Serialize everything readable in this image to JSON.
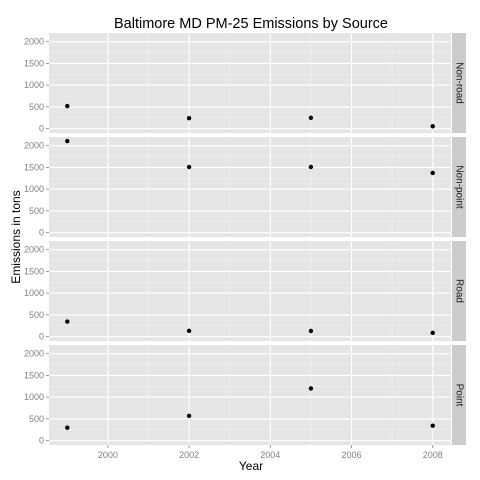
{
  "chart_data": {
    "type": "scatter",
    "title": "Baltimore MD PM-25 Emissions by Source",
    "xlabel": "Year",
    "ylabel": "Emissions in tons",
    "x_ticks": [
      "2000",
      "2002",
      "2004",
      "2006",
      "2008"
    ],
    "y_ticks": [
      "0",
      "500",
      "1000",
      "1500",
      "2000"
    ],
    "xlim": [
      1998.55,
      2008.45
    ],
    "ylim": [
      -100,
      2200
    ],
    "grid": true,
    "facets": [
      {
        "label": "Non-road",
        "points": [
          {
            "x": 1999,
            "y": 520
          },
          {
            "x": 2002,
            "y": 240
          },
          {
            "x": 2005,
            "y": 250
          },
          {
            "x": 2008,
            "y": 55
          }
        ]
      },
      {
        "label": "Non-point",
        "points": [
          {
            "x": 1999,
            "y": 2107
          },
          {
            "x": 2002,
            "y": 1510
          },
          {
            "x": 2005,
            "y": 1510
          },
          {
            "x": 2008,
            "y": 1373
          }
        ]
      },
      {
        "label": "Road",
        "points": [
          {
            "x": 1999,
            "y": 347
          },
          {
            "x": 2002,
            "y": 134
          },
          {
            "x": 2005,
            "y": 130
          },
          {
            "x": 2008,
            "y": 88
          }
        ]
      },
      {
        "label": "Point",
        "points": [
          {
            "x": 1999,
            "y": 297
          },
          {
            "x": 2002,
            "y": 570
          },
          {
            "x": 2005,
            "y": 1200
          },
          {
            "x": 2008,
            "y": 345
          }
        ]
      }
    ],
    "colors": {
      "panel_bg": "#e5e5e5",
      "grid_major": "#ffffff",
      "grid_minor": "#f2f2f2",
      "strip_bg": "#cccccc",
      "point": "#000000"
    }
  }
}
